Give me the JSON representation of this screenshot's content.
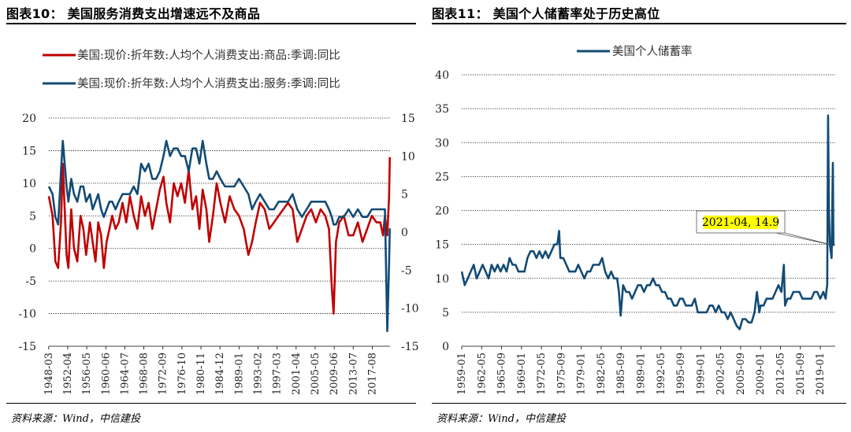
{
  "left": {
    "figure_title": "图表10：  美国服务消费支出增速远不及商品",
    "source": "资料来源：Wind，中信建投"
  },
  "right": {
    "figure_title": "图表11：  美国个人储蓄率处于历史高位",
    "source": "资料来源：Wind，中信建投"
  },
  "chart_data": [
    {
      "type": "line",
      "title": "",
      "series": [
        {
          "name": "美国:现价:折年数:人均个人消费支出:商品:季调:同比",
          "axis": "left",
          "color": "#c00000",
          "x": [
            1948.2,
            1949.0,
            1949.6,
            1950.2,
            1950.8,
            1951.2,
            1952.0,
            1952.4,
            1953.0,
            1953.6,
            1954.3,
            1955.0,
            1955.6,
            1956.2,
            1957.0,
            1957.6,
            1958.2,
            1958.8,
            1959.4,
            1960.0,
            1960.6,
            1961.2,
            1961.8,
            1962.5,
            1963.2,
            1964.0,
            1964.8,
            1965.6,
            1966.4,
            1967.2,
            1968.0,
            1968.8,
            1969.6,
            1970.4,
            1971.2,
            1972.0,
            1972.8,
            1973.4,
            1974.2,
            1975.0,
            1975.8,
            1976.6,
            1977.4,
            1978.2,
            1979.0,
            1979.8,
            1980.5,
            1981.2,
            1982.0,
            1982.6,
            1983.4,
            1984.2,
            1985.0,
            1986.0,
            1987.0,
            1988.0,
            1989.0,
            1990.0,
            1991.0,
            1991.8,
            1992.6,
            1993.5,
            1994.5,
            1995.5,
            1996.5,
            1997.5,
            1998.5,
            1999.5,
            2000.5,
            2001.5,
            2002.5,
            2003.5,
            2004.5,
            2005.5,
            2006.5,
            2007.5,
            2008.3,
            2008.9,
            2009.3,
            2009.8,
            2010.5,
            2011.5,
            2012.5,
            2013.5,
            2014.5,
            2015.5,
            2016.5,
            2017.5,
            2018.5,
            2019.3,
            2019.9,
            2020.3,
            2020.8,
            2021.2,
            2021.35
          ],
          "values": [
            8,
            5,
            -2,
            -3,
            4,
            13,
            -1,
            -3,
            6,
            0,
            -2,
            5,
            3,
            -1,
            4,
            1,
            -2,
            4,
            2,
            -3,
            1,
            3,
            5,
            3,
            4,
            7,
            4,
            8,
            5,
            3,
            8,
            5,
            7,
            3,
            6,
            9,
            11,
            7,
            4,
            10,
            8,
            10,
            7,
            12,
            6,
            8,
            3,
            9,
            6,
            1,
            5,
            10,
            7,
            4,
            8,
            6,
            5,
            3,
            -1,
            1,
            4,
            7,
            6,
            3,
            4,
            5,
            6,
            7,
            6,
            1,
            3,
            5,
            6,
            4,
            6,
            5,
            3,
            -6,
            -10,
            1,
            4,
            5,
            2,
            2,
            4,
            1,
            3,
            5,
            4,
            4,
            2,
            5,
            2,
            8,
            14
          ]
        },
        {
          "name": "美国:现价:折年数:人均个人消费支出:服务:季调:同比",
          "axis": "right",
          "color": "#134b75",
          "x": [
            1948.2,
            1949.0,
            1949.6,
            1950.2,
            1950.8,
            1951.2,
            1952.0,
            1952.4,
            1953.0,
            1953.6,
            1954.3,
            1955.0,
            1955.6,
            1956.2,
            1957.0,
            1957.6,
            1958.2,
            1958.8,
            1959.4,
            1960.0,
            1960.6,
            1961.2,
            1961.8,
            1962.5,
            1963.2,
            1964.0,
            1964.8,
            1965.6,
            1966.4,
            1967.2,
            1968.0,
            1968.8,
            1969.6,
            1970.4,
            1971.2,
            1972.0,
            1972.8,
            1973.4,
            1974.2,
            1975.0,
            1975.8,
            1976.6,
            1977.4,
            1978.2,
            1979.0,
            1979.8,
            1980.5,
            1981.2,
            1982.0,
            1982.6,
            1983.4,
            1984.2,
            1985.0,
            1986.0,
            1987.0,
            1988.0,
            1989.0,
            1990.0,
            1991.0,
            1991.8,
            1992.6,
            1993.5,
            1994.5,
            1995.5,
            1996.5,
            1997.5,
            1998.5,
            1999.5,
            2000.5,
            2001.5,
            2002.5,
            2003.5,
            2004.5,
            2005.5,
            2006.5,
            2007.5,
            2008.3,
            2008.9,
            2009.3,
            2009.8,
            2010.5,
            2011.5,
            2012.5,
            2013.5,
            2014.5,
            2015.5,
            2016.5,
            2017.5,
            2018.5,
            2019.3,
            2019.9,
            2020.3,
            2020.8,
            2021.2,
            2021.35
          ],
          "values": [
            6,
            5,
            2,
            1,
            8,
            12,
            6,
            4,
            7,
            5,
            4,
            6,
            6,
            4,
            5,
            3,
            4,
            5,
            3,
            2,
            3,
            4,
            4,
            3,
            4,
            5,
            5,
            5,
            6,
            5,
            9,
            8,
            9,
            7,
            7,
            8,
            10,
            12,
            10,
            11,
            11,
            10,
            10,
            8,
            11,
            11,
            9,
            12,
            9,
            7,
            7,
            8,
            7,
            6,
            6,
            6,
            7,
            6,
            5,
            3,
            4,
            5,
            4,
            3,
            3,
            4,
            4,
            4,
            5,
            3,
            2,
            3,
            4,
            4,
            4,
            4,
            3,
            2,
            1,
            1,
            2,
            2,
            3,
            2,
            3,
            2,
            2,
            3,
            3,
            3,
            3,
            3,
            -13,
            -4,
            0.5
          ]
        }
      ],
      "x_tick_labels": [
        "1948-03",
        "1952-04",
        "1956-05",
        "1960-06",
        "1964-07",
        "1968-08",
        "1972-09",
        "1976-10",
        "1980-11",
        "1984-12",
        "1989-01",
        "1993-02",
        "1997-03",
        "2001-04",
        "2005-05",
        "2009-06",
        "2013-07",
        "2017-08"
      ],
      "y_left": {
        "min": -15,
        "max": 20,
        "ticks": [
          "20",
          "15",
          "10",
          "5",
          "0",
          "-5",
          "-10",
          "-15"
        ]
      },
      "y_right": {
        "min": -15,
        "max": 15,
        "ticks": [
          "15",
          "10",
          "5",
          "0",
          "-5",
          "-10",
          "-15"
        ]
      },
      "legend_position": "top"
    },
    {
      "type": "line",
      "title": "",
      "series": [
        {
          "name": "美国个人储蓄率",
          "color": "#134b75",
          "x": [
            1959.0,
            1959.5,
            1960.0,
            1960.5,
            1961.0,
            1961.5,
            1962.0,
            1962.5,
            1963.0,
            1963.5,
            1964.0,
            1964.5,
            1965.0,
            1965.5,
            1966.0,
            1966.5,
            1967.0,
            1967.5,
            1968.0,
            1968.5,
            1969.0,
            1969.5,
            1970.0,
            1970.5,
            1971.0,
            1971.5,
            1972.0,
            1972.5,
            1973.0,
            1973.5,
            1974.0,
            1974.5,
            1975.0,
            1975.3,
            1975.5,
            1976.0,
            1976.5,
            1977.0,
            1977.5,
            1978.0,
            1978.5,
            1979.0,
            1979.5,
            1980.0,
            1980.5,
            1981.0,
            1981.5,
            1982.0,
            1982.5,
            1983.0,
            1983.5,
            1984.0,
            1984.5,
            1985.0,
            1985.3,
            1985.6,
            1986.0,
            1986.5,
            1987.0,
            1987.5,
            1988.0,
            1988.5,
            1989.0,
            1989.5,
            1990.0,
            1990.5,
            1991.0,
            1991.5,
            1992.0,
            1992.5,
            1993.0,
            1993.5,
            1994.0,
            1994.5,
            1995.0,
            1995.5,
            1996.0,
            1996.5,
            1997.0,
            1997.5,
            1998.0,
            1998.5,
            1999.0,
            1999.5,
            2000.0,
            2000.5,
            2001.0,
            2001.5,
            2002.0,
            2002.5,
            2003.0,
            2003.5,
            2004.0,
            2004.5,
            2005.0,
            2005.5,
            2006.0,
            2006.5,
            2007.0,
            2007.5,
            2008.0,
            2008.4,
            2008.8,
            2009.0,
            2009.5,
            2010.0,
            2010.5,
            2011.0,
            2011.5,
            2012.0,
            2012.5,
            2012.9,
            2013.1,
            2013.5,
            2014.0,
            2014.5,
            2015.0,
            2015.5,
            2016.0,
            2016.5,
            2017.0,
            2017.5,
            2018.0,
            2018.5,
            2019.0,
            2019.5,
            2019.9,
            2020.0,
            2020.15,
            2020.3,
            2020.45,
            2020.6,
            2020.75,
            2020.9,
            2021.0,
            2021.1,
            2021.2,
            2021.3
          ],
          "values": [
            11,
            9,
            10,
            11,
            12,
            10,
            11,
            12,
            11,
            10,
            12,
            11,
            12,
            11,
            12,
            11,
            13,
            12,
            12,
            11,
            11,
            11,
            13,
            14,
            14,
            13,
            14,
            13,
            14,
            13,
            14,
            15,
            15,
            17,
            13,
            13,
            12,
            11,
            11,
            11,
            12,
            11,
            10,
            11,
            11,
            12,
            12,
            12,
            13,
            11,
            10,
            11,
            10,
            10,
            8,
            4.5,
            9,
            8,
            8,
            7,
            8,
            9,
            9,
            8,
            9,
            9,
            10,
            9,
            9,
            8,
            8,
            7,
            7,
            6,
            6,
            7,
            7,
            6,
            6,
            6,
            7,
            5,
            5,
            5,
            5,
            6,
            6,
            5,
            6,
            5,
            5,
            4,
            5,
            4,
            3,
            2.5,
            4,
            4,
            3.5,
            3.5,
            5,
            8,
            5,
            6,
            6,
            7,
            7,
            7,
            8,
            9,
            8,
            12,
            6,
            7,
            7,
            8,
            8,
            8,
            7,
            7,
            7,
            7,
            8,
            8,
            7,
            8,
            7,
            8,
            9,
            34,
            20,
            15,
            14,
            13,
            20,
            27,
            14.9,
            15
          ]
        }
      ],
      "x_tick_labels": [
        "1959-01",
        "1962-05",
        "1965-09",
        "1969-01",
        "1972-05",
        "1975-09",
        "1979-01",
        "1982-05",
        "1985-09",
        "1989-01",
        "1992-05",
        "1995-09",
        "1999-01",
        "2002-05",
        "2005-09",
        "2009-01",
        "2012-05",
        "2015-09",
        "2019-01"
      ],
      "y": {
        "min": 0,
        "max": 40,
        "ticks": [
          "40",
          "35",
          "30",
          "25",
          "20",
          "15",
          "10",
          "5",
          "0"
        ]
      },
      "annotation": {
        "text": "2021-04, 14.9",
        "x": 2021.3,
        "y": 14.9
      },
      "legend_position": "top"
    }
  ]
}
